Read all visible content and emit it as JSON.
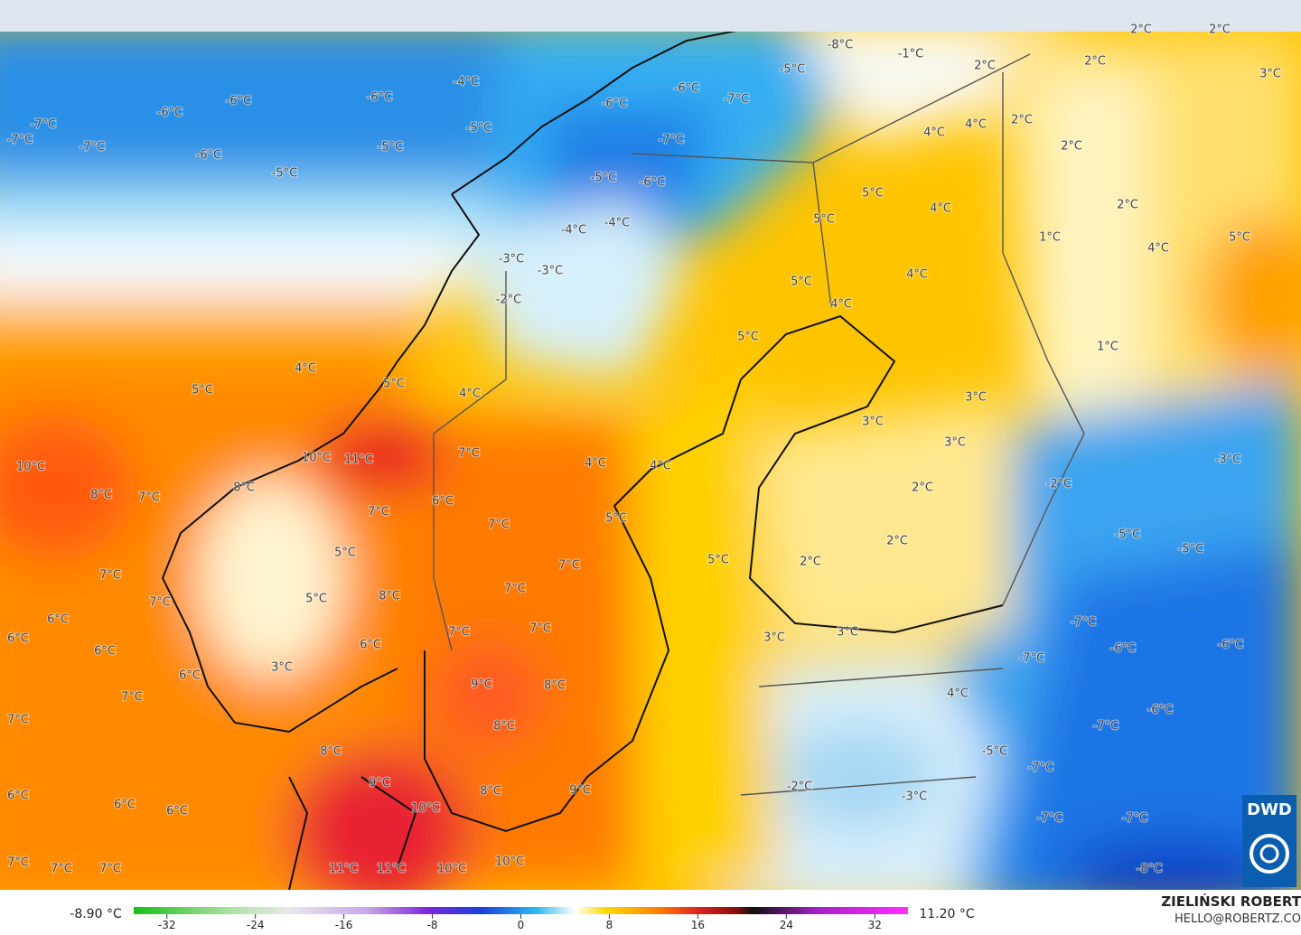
{
  "map": {
    "labels": [
      "-7°C",
      "-7°C",
      "-7°C",
      "-6°C",
      "-6°C",
      "-6°C",
      "-6°C",
      "-5°C",
      "-5°C",
      "-5°C",
      "-4°C",
      "-4°C",
      "-4°C",
      "-3°C",
      "-3°C",
      "-2°C",
      "-8°C",
      "-1°C",
      "-5°C",
      "-6°C",
      "-7°C",
      "-7°C",
      "-6°C",
      "-6°C",
      "-5°C",
      "2°C",
      "2°C",
      "2°C",
      "2°C",
      "2°C",
      "2°C",
      "2°C",
      "3°C",
      "4°C",
      "4°C",
      "4°C",
      "4°C",
      "4°C",
      "4°C",
      "5°C",
      "5°C",
      "5°C",
      "5°C",
      "5°C",
      "1°C",
      "1°C",
      "4°C",
      "5°C",
      "5°C",
      "4°C",
      "10°C",
      "10°C",
      "11°C",
      "8°C",
      "8°C",
      "7°C",
      "7°C",
      "7°C",
      "7°C",
      "7°C",
      "7°C",
      "7°C",
      "7°C",
      "7°C",
      "7°C",
      "7°C",
      "7°C",
      "7°C",
      "7°C",
      "7°C",
      "6°C",
      "6°C",
      "6°C",
      "6°C",
      "6°C",
      "6°C",
      "6°C",
      "6°C",
      "6°C",
      "5°C",
      "5°C",
      "5°C",
      "5°C",
      "4°C",
      "4°C",
      "4°C",
      "3°C",
      "3°C",
      "3°C",
      "3°C",
      "3°C",
      "3°C",
      "2°C",
      "2°C",
      "2°C",
      "-2°C",
      "-2°C",
      "-3°C",
      "-3°C",
      "-5°C",
      "-5°C",
      "-5°C",
      "-6°C",
      "-6°C",
      "-6°C",
      "-7°C",
      "-7°C",
      "-7°C",
      "-7°C",
      "-7°C",
      "-7°C",
      "-8°C",
      "8°C",
      "8°C",
      "8°C",
      "8°C",
      "8°C",
      "9°C",
      "9°C",
      "9°C",
      "10°C",
      "10°C",
      "10°C",
      "11°C",
      "11°C"
    ]
  },
  "colorbar": {
    "lim": [
      -35,
      35
    ],
    "ticks": [
      -32,
      -24,
      -16,
      -8,
      0,
      8,
      16,
      24,
      32
    ],
    "min_label": "-8.90 °C",
    "max_label": "11.20 °C"
  },
  "credits": {
    "author": "ZIELIŃSKI ROBERT",
    "contact": "HELLO@ROBERTZ.CO",
    "logo": "DWD"
  }
}
